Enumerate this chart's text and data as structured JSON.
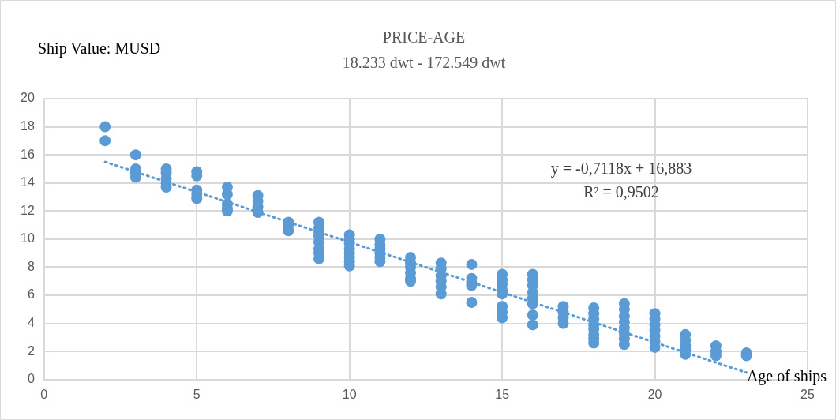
{
  "chart_data": {
    "type": "scatter",
    "title": "PRICE-AGE",
    "subtitle": "18.233 dwt - 172.549 dwt",
    "ylabel": "Ship Value: MUSD",
    "xlabel": "Age of ships",
    "annotations": [
      "y = -0,7118x + 16,883",
      "R² = 0,9502"
    ],
    "xlim": [
      0,
      25
    ],
    "xticks": [
      0,
      5,
      10,
      15,
      20,
      25
    ],
    "ylim": [
      0,
      20
    ],
    "yticks": [
      0,
      2,
      4,
      6,
      8,
      10,
      12,
      14,
      16,
      18,
      20
    ],
    "grid": true,
    "legend": false,
    "marker": "circle",
    "series": [
      {
        "color": "#5b9bd5",
        "x": [
          2,
          2,
          3,
          3,
          3,
          3,
          4,
          4,
          4,
          4,
          4,
          5,
          5,
          5,
          5,
          5,
          6,
          6,
          6,
          6,
          6,
          7,
          7,
          7,
          7,
          8,
          8,
          8,
          9,
          9,
          9,
          9,
          9,
          9,
          9,
          9,
          10,
          10,
          10,
          10,
          10,
          10,
          10,
          10,
          11,
          11,
          11,
          11,
          11,
          11,
          12,
          12,
          12,
          12,
          12,
          12,
          13,
          13,
          13,
          13,
          13,
          13,
          14,
          14,
          14,
          14,
          14,
          15,
          15,
          15,
          15,
          15,
          15,
          15,
          15,
          16,
          16,
          16,
          16,
          16,
          16,
          16,
          16,
          17,
          17,
          17,
          17,
          18,
          18,
          18,
          18,
          18,
          18,
          18,
          18,
          19,
          19,
          19,
          19,
          19,
          19,
          19,
          19,
          20,
          20,
          20,
          20,
          20,
          20,
          20,
          21,
          21,
          21,
          21,
          21,
          22,
          22,
          22,
          23,
          23
        ],
        "values": [
          18,
          17,
          16,
          15,
          14.7,
          14.4,
          15,
          14.7,
          14.3,
          14,
          13.7,
          14.8,
          14.5,
          13.5,
          13.2,
          12.9,
          13.7,
          13.2,
          12.5,
          12.2,
          12,
          13.1,
          12.7,
          12.3,
          11.9,
          11.2,
          11,
          10.6,
          11.2,
          10.8,
          10.5,
          10.2,
          9.8,
          9.3,
          9,
          8.6,
          10.3,
          10,
          9.7,
          9.3,
          9,
          8.7,
          8.4,
          8.1,
          10,
          9.6,
          9.3,
          9,
          8.7,
          8.4,
          8.7,
          8.3,
          8,
          7.6,
          7.2,
          7,
          8.3,
          7.9,
          7.4,
          7,
          6.6,
          6.1,
          8.2,
          7.2,
          6.9,
          6.7,
          5.5,
          7.5,
          7.1,
          6.8,
          6.4,
          6.1,
          5.2,
          4.8,
          4.4,
          7.5,
          7.1,
          6.7,
          6.2,
          5.8,
          5.4,
          4.6,
          3.9,
          5.2,
          4.8,
          4.4,
          4,
          5.1,
          4.7,
          4.3,
          3.9,
          3.6,
          3.2,
          2.9,
          2.6,
          5.4,
          5,
          4.5,
          4.1,
          3.7,
          3.3,
          2.9,
          2.5,
          4.7,
          4.3,
          3.9,
          3.5,
          3.1,
          2.7,
          2.3,
          3.2,
          2.8,
          2.4,
          2.1,
          1.8,
          2.4,
          2,
          1.7,
          1.9,
          1.7
        ]
      },
      {
        "type": "line",
        "color": "#5b9bd5",
        "x": [
          2,
          23
        ],
        "values": [
          15.5,
          0.5
        ],
        "line_style": "dotted",
        "marker": "none"
      }
    ]
  }
}
